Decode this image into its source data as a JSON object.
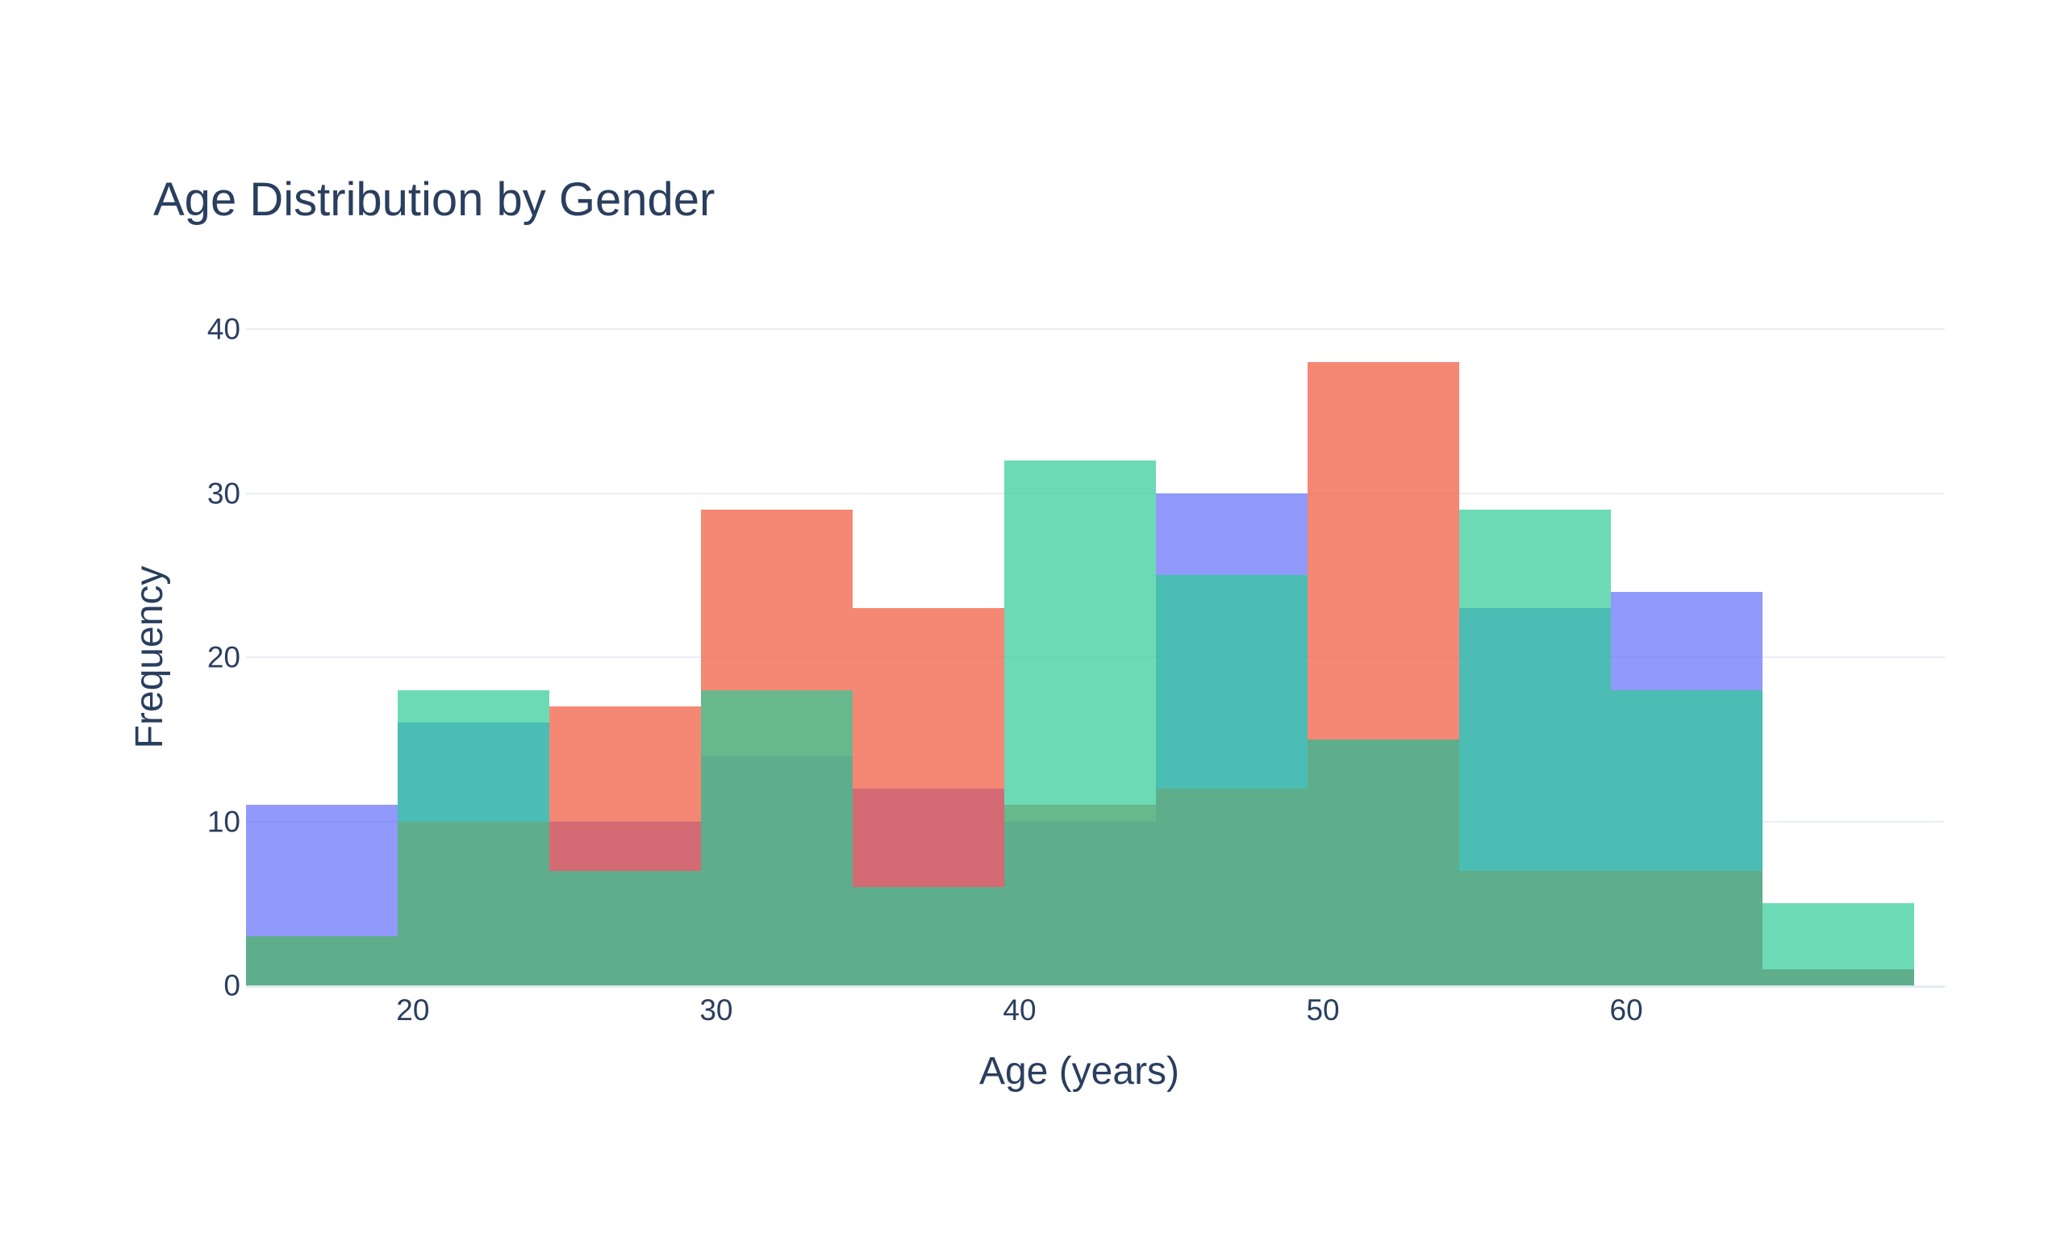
{
  "figure": {
    "title": "Age Distribution by Gender",
    "background": "#ffffff",
    "text_color": "#2a3f5f",
    "gridline_color": "#e8eef5",
    "axisline_color": "#e2ebf3",
    "x_axis": {
      "label": "Age (years)",
      "ticks": [
        "20",
        "30",
        "40",
        "50",
        "60"
      ],
      "tick_values": [
        20,
        30,
        40,
        50,
        60
      ],
      "range": [
        14.5,
        70.5
      ]
    },
    "y_axis": {
      "label": "Frequency",
      "ticks": [
        "0",
        "10",
        "20",
        "30",
        "40"
      ],
      "tick_values": [
        0,
        10,
        20,
        30,
        40
      ],
      "range": [
        0,
        40
      ],
      "gridline_values": [
        10,
        20,
        30,
        40
      ]
    }
  },
  "chart_data": {
    "type": "bar",
    "subtype": "overlaid-histogram",
    "title": "Age Distribution by Gender",
    "xlabel": "Age (years)",
    "ylabel": "Frequency",
    "xlim": [
      14.5,
      70.5
    ],
    "ylim": [
      0,
      40
    ],
    "grid": true,
    "legend_position": "none",
    "bin_start": 14.5,
    "bin_size": 5,
    "bin_count": 11,
    "bin_edges": [
      14.5,
      19.5,
      24.5,
      29.5,
      34.5,
      39.5,
      44.5,
      49.5,
      54.5,
      59.5,
      64.5,
      69.5
    ],
    "bin_centers": [
      17,
      22,
      27,
      32,
      37,
      42,
      47,
      52,
      57,
      62,
      67
    ],
    "series": [
      {
        "name": "blue-series",
        "color": "#636EFA",
        "opacity": 0.7,
        "draw_order": 1,
        "values": [
          11,
          16,
          10,
          14,
          12,
          10,
          30,
          15,
          23,
          24,
          1
        ]
      },
      {
        "name": "red-series",
        "color": "#EF553B",
        "opacity": 0.7,
        "draw_order": 2,
        "values": [
          3,
          10,
          17,
          29,
          23,
          11,
          12,
          38,
          7,
          7,
          1
        ]
      },
      {
        "name": "green-series",
        "color": "#2ECC96",
        "opacity": 0.7,
        "draw_order": 3,
        "values": [
          3,
          18,
          7,
          18,
          6,
          32,
          25,
          15,
          29,
          18,
          5
        ]
      }
    ]
  }
}
